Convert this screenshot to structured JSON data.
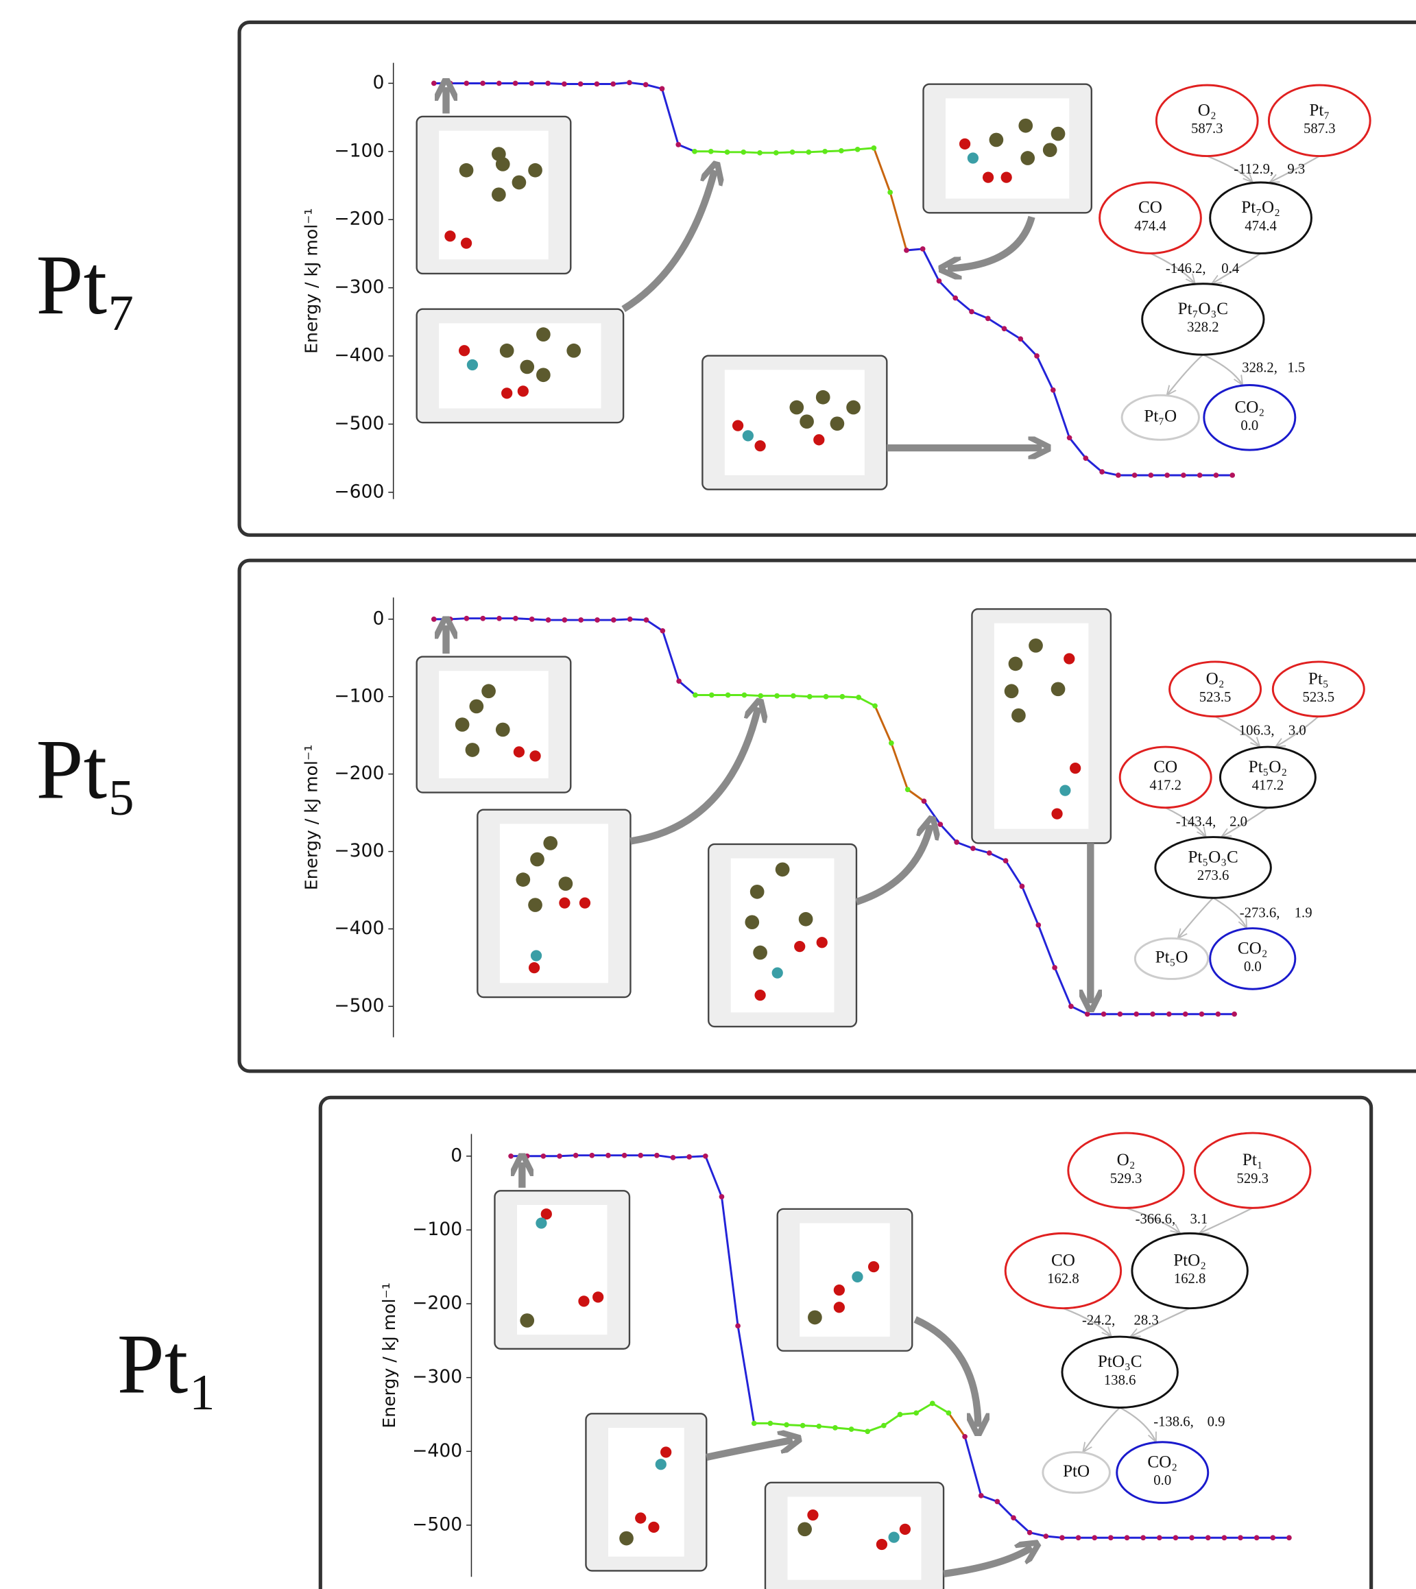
{
  "chart_data": [
    {
      "type": "line",
      "panel_label": "Pt₇",
      "y_label": "Energy / kJ mol⁻¹",
      "ylim": [
        -610,
        30
      ],
      "yticks": [
        0,
        {
          "value": -100,
          "label": "−100"
        },
        {
          "value": -200,
          "label": "−200"
        },
        {
          "value": -300,
          "label": "−300"
        },
        {
          "value": -400,
          "label": "−400"
        },
        {
          "value": -500,
          "label": "−500"
        },
        {
          "value": -600,
          "label": "−600"
        }
      ],
      "values": [
        0,
        0,
        0,
        0,
        0,
        0,
        0,
        0,
        -1,
        -1,
        -1,
        -1,
        1,
        -2,
        -8,
        -90,
        -100,
        -100,
        -101,
        -101,
        -102,
        -102,
        -101,
        -101,
        -100,
        -99,
        -97,
        -95,
        -160,
        -245,
        -243,
        -290,
        -315,
        -335,
        -345,
        -360,
        -375,
        -400,
        -450,
        -520,
        -550,
        -570,
        -575,
        -575,
        -575,
        -575,
        -575,
        -575,
        -575,
        -575
      ],
      "line_color": "#2323d8",
      "marker_color": "#b3125c",
      "plateau": {
        "range": [
          16,
          27
        ],
        "color": "#5fe81a"
      },
      "descent": {
        "range": [
          27,
          29
        ],
        "color": "#c8650f"
      },
      "network": {
        "nodes": [
          {
            "label": "O₂",
            "energy": "587.3",
            "color": "#e02020"
          },
          {
            "label": "Pt₇",
            "energy": "587.3",
            "color": "#e02020"
          },
          {
            "label": "CO",
            "energy": "474.4",
            "color": "#e02020"
          },
          {
            "label": "Pt₇O₂",
            "energy": "474.4",
            "color": "#111111"
          },
          {
            "label": "Pt₇O₃C",
            "energy": "328.2",
            "color": "#111111"
          },
          {
            "label": "Pt₇O",
            "color": "#cccccc"
          },
          {
            "label": "CO₂",
            "energy": "0.0",
            "color": "#1a1acc"
          }
        ],
        "edge_labels": [
          {
            "text": "-112.9,",
            "barrier": "9.3"
          },
          {
            "text": "-146.2,",
            "barrier": "0.4"
          },
          {
            "text": "328.2,",
            "barrier": "1.5"
          }
        ]
      }
    },
    {
      "type": "line",
      "panel_label": "Pt₅",
      "y_label": "Energy / kJ mol⁻¹",
      "ylim": [
        -540,
        28
      ],
      "yticks": [
        0,
        {
          "value": -100,
          "label": "−100"
        },
        {
          "value": -200,
          "label": "−200"
        },
        {
          "value": -300,
          "label": "−300"
        },
        {
          "value": -400,
          "label": "−400"
        },
        {
          "value": -500,
          "label": "−500"
        }
      ],
      "values": [
        0,
        0,
        1,
        1,
        1,
        1,
        0,
        -1,
        -1,
        -1,
        -1,
        -1,
        0,
        -1,
        -15,
        -80,
        -98,
        -98,
        -98,
        -98,
        -99,
        -99,
        -99,
        -100,
        -100,
        -100,
        -101,
        -112,
        -160,
        -220,
        -235,
        -265,
        -288,
        -296,
        -302,
        -312,
        -345,
        -395,
        -450,
        -500,
        -510,
        -510,
        -510,
        -510,
        -510,
        -510,
        -510,
        -510,
        -510,
        -510
      ],
      "line_color": "#2323d8",
      "marker_color": "#b3125c",
      "plateau": {
        "range": [
          16,
          27
        ],
        "color": "#5fe81a"
      },
      "descent": {
        "range": [
          27,
          30
        ],
        "color": "#c8650f"
      },
      "network": {
        "nodes": [
          {
            "label": "O₂",
            "energy": "523.5",
            "color": "#e02020"
          },
          {
            "label": "Pt₅",
            "energy": "523.5",
            "color": "#e02020"
          },
          {
            "label": "CO",
            "energy": "417.2",
            "color": "#e02020"
          },
          {
            "label": "Pt₅O₂",
            "energy": "417.2",
            "color": "#111111"
          },
          {
            "label": "Pt₅O₃C",
            "energy": "273.6",
            "color": "#111111"
          },
          {
            "label": "Pt₅O",
            "color": "#cccccc"
          },
          {
            "label": "CO₂",
            "energy": "0.0",
            "color": "#1a1acc"
          }
        ],
        "edge_labels": [
          {
            "text": "106.3,",
            "barrier": "3.0"
          },
          {
            "text": "-143.4,",
            "barrier": "2.0"
          },
          {
            "text": "-273.6,",
            "barrier": "1.9"
          }
        ]
      }
    },
    {
      "type": "line",
      "panel_label": "Pt₁",
      "y_label": "Energy / kJ mol⁻¹",
      "ylim": [
        -570,
        30
      ],
      "yticks": [
        0,
        {
          "value": -100,
          "label": "−100"
        },
        {
          "value": -200,
          "label": "−200"
        },
        {
          "value": -300,
          "label": "−300"
        },
        {
          "value": -400,
          "label": "−400"
        },
        {
          "value": -500,
          "label": "−500"
        }
      ],
      "values": [
        0,
        0,
        0,
        0,
        1,
        1,
        1,
        1,
        1,
        1,
        -2,
        -1,
        0,
        -55,
        -230,
        -362,
        -362,
        -364,
        -365,
        -366,
        -368,
        -370,
        -373,
        -365,
        -350,
        -348,
        -335,
        -348,
        -380,
        -460,
        -468,
        -490,
        -510,
        -515,
        -517,
        -517,
        -517,
        -517,
        -517,
        -517,
        -517,
        -517,
        -517,
        -517,
        -517,
        -517,
        -517,
        -517,
        -517
      ],
      "line_color": "#2323d8",
      "marker_color": "#b3125c",
      "plateau": {
        "range": [
          15,
          27
        ],
        "color": "#5fe81a"
      },
      "descent": {
        "range": [
          27,
          28
        ],
        "color": "#c8650f"
      },
      "network": {
        "nodes": [
          {
            "label": "O₂",
            "energy": "529.3",
            "color": "#e02020"
          },
          {
            "label": "Pt₁",
            "energy": "529.3",
            "color": "#e02020"
          },
          {
            "label": "CO",
            "energy": "162.8",
            "color": "#e02020"
          },
          {
            "label": "PtO₂",
            "energy": "162.8",
            "color": "#111111"
          },
          {
            "label": "PtO₃C",
            "energy": "138.6",
            "color": "#111111"
          },
          {
            "label": "PtO",
            "color": "#cccccc"
          },
          {
            "label": "CO₂",
            "energy": "0.0",
            "color": "#1a1acc"
          }
        ],
        "edge_labels": [
          {
            "text": "-366.6,",
            "barrier": "3.1"
          },
          {
            "text": "-24.2,",
            "barrier": "28.3"
          },
          {
            "text": "-138.6,",
            "barrier": "0.9"
          }
        ]
      }
    }
  ]
}
